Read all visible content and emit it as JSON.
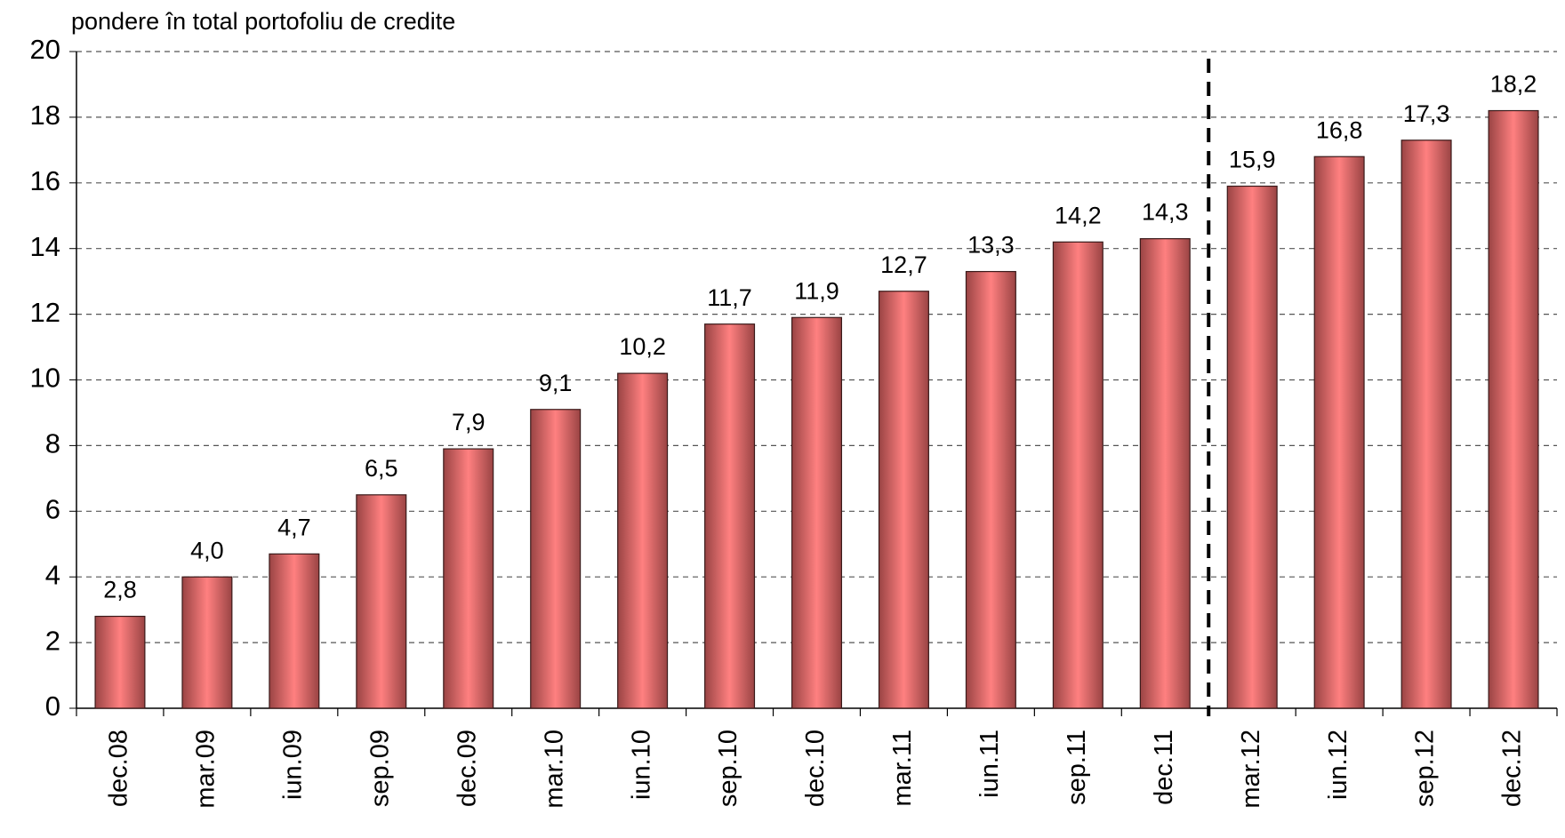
{
  "chart_data": {
    "type": "bar",
    "y_axis_label": "pondere în total portofoliu de credite",
    "categories": [
      "dec.08",
      "mar.09",
      "iun.09",
      "sep.09",
      "dec.09",
      "mar.10",
      "iun.10",
      "sep.10",
      "dec.10",
      "mar.11",
      "iun.11",
      "sep.11",
      "dec.11",
      "mar.12",
      "iun.12",
      "sep.12",
      "dec.12"
    ],
    "values": [
      2.8,
      4.0,
      4.7,
      6.5,
      7.9,
      9.1,
      10.2,
      11.7,
      11.9,
      12.7,
      13.3,
      14.2,
      14.3,
      15.9,
      16.8,
      17.3,
      18.2
    ],
    "value_labels": [
      "2,8",
      "4,0",
      "4,7",
      "6,5",
      "7,9",
      "9,1",
      "10,2",
      "11,7",
      "11,9",
      "12,7",
      "13,3",
      "14,2",
      "14,3",
      "15,9",
      "16,8",
      "17,3",
      "18,2"
    ],
    "color": "#ff8080",
    "ylim": [
      0,
      20
    ],
    "yticks": [
      0,
      2,
      4,
      6,
      8,
      10,
      12,
      14,
      16,
      18,
      20
    ],
    "grid": true
  }
}
